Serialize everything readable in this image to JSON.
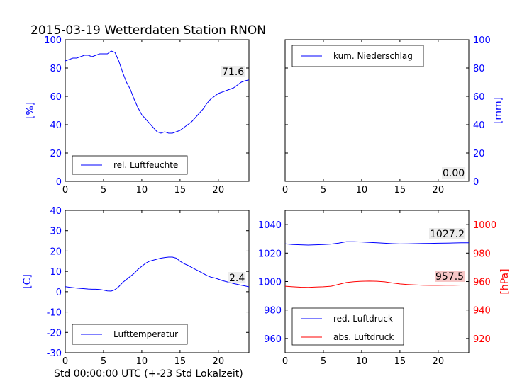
{
  "title": "2015-03-19 Wetterdaten Station RNON",
  "xlabel": "Std 00:00:00 UTC (+-23 Std Lokalzeit)",
  "chart_data": [
    {
      "type": "line",
      "id": "humidity",
      "xlim": [
        0,
        24
      ],
      "ylim": [
        0,
        100
      ],
      "xticks": [
        0,
        5,
        10,
        15,
        20
      ],
      "yticks": [
        0,
        20,
        40,
        60,
        80,
        100
      ],
      "ylabel": "[%]",
      "legend": "bottom-left",
      "value_label": "71.6",
      "series": [
        {
          "name": "rel. Luftfeuchte",
          "color": "#0000ff",
          "x": [
            0,
            0.5,
            1,
            1.5,
            2,
            2.5,
            3,
            3.5,
            4,
            4.5,
            5,
            5.5,
            6,
            6.5,
            7,
            7.5,
            8,
            8.5,
            9,
            9.5,
            10,
            10.5,
            11,
            11.5,
            12,
            12.5,
            13,
            13.5,
            14,
            14.5,
            15,
            15.5,
            16,
            16.5,
            17,
            17.5,
            18,
            18.5,
            19,
            19.5,
            20,
            20.5,
            21,
            21.5,
            22,
            22.5,
            23,
            23.5,
            24
          ],
          "y": [
            85,
            86,
            87,
            87,
            88,
            89,
            89,
            88,
            89,
            90,
            90,
            90,
            92,
            91,
            85,
            77,
            70,
            65,
            58,
            52,
            47,
            44,
            41,
            38,
            35,
            34,
            35,
            34,
            34,
            35,
            36,
            38,
            40,
            42,
            45,
            48,
            51,
            55,
            58,
            60,
            62,
            63,
            64,
            65,
            66,
            68,
            70,
            71,
            71.6
          ]
        }
      ]
    },
    {
      "type": "line",
      "id": "precipitation",
      "xlim": [
        0,
        24
      ],
      "ylim": [
        0,
        100
      ],
      "xticks": [
        0,
        5,
        10,
        15,
        20
      ],
      "yticks": [
        0,
        20,
        40,
        60,
        80,
        100
      ],
      "ylabel": "[mm]",
      "legend": "top-left",
      "value_label": "0.00",
      "series": [
        {
          "name": "kum. Niederschlag",
          "color": "#0000ff",
          "x": [
            0,
            24
          ],
          "y": [
            0,
            0
          ]
        }
      ]
    },
    {
      "type": "line",
      "id": "temperature",
      "xlim": [
        0,
        24
      ],
      "ylim": [
        -30,
        40
      ],
      "xticks": [
        0,
        5,
        10,
        15,
        20
      ],
      "yticks": [
        -30,
        -20,
        -10,
        0,
        10,
        20,
        30,
        40
      ],
      "ylabel": "[C]",
      "legend": "bottom-left",
      "value_label": "2.4",
      "series": [
        {
          "name": "Lufttemperatur",
          "color": "#0000ff",
          "x": [
            0,
            0.5,
            1,
            1.5,
            2,
            2.5,
            3,
            3.5,
            4,
            4.5,
            5,
            5.5,
            6,
            6.5,
            7,
            7.5,
            8,
            8.5,
            9,
            9.5,
            10,
            10.5,
            11,
            11.5,
            12,
            12.5,
            13,
            13.5,
            14,
            14.5,
            15,
            15.5,
            16,
            16.5,
            17,
            17.5,
            18,
            18.5,
            19,
            19.5,
            20,
            20.5,
            21,
            21.5,
            22,
            22.5,
            23,
            23.5,
            24
          ],
          "y": [
            2.5,
            2.2,
            2.0,
            1.8,
            1.6,
            1.5,
            1.3,
            1.2,
            1.2,
            1.1,
            0.8,
            0.4,
            0.3,
            1.0,
            2.5,
            4.5,
            6.0,
            7.5,
            9.0,
            11.0,
            12.5,
            14.0,
            15.0,
            15.5,
            16.0,
            16.5,
            16.8,
            17.0,
            17.0,
            16.5,
            15.0,
            13.8,
            13.0,
            12.0,
            11.0,
            10.0,
            9.0,
            8.0,
            7.2,
            6.8,
            6.2,
            5.5,
            5.0,
            4.5,
            4.0,
            3.6,
            3.2,
            2.8,
            2.4
          ]
        }
      ]
    },
    {
      "type": "line",
      "id": "pressure",
      "xlim": [
        0,
        24
      ],
      "ylim": [
        950,
        1050
      ],
      "y2lim": [
        910,
        1010
      ],
      "xticks": [
        0,
        5,
        10,
        15,
        20
      ],
      "yticks": [
        960,
        980,
        1000,
        1020,
        1040
      ],
      "y2ticks": [
        920,
        940,
        960,
        980,
        1000
      ],
      "y2label": "[hPa]",
      "legend": "bottom-left",
      "series": [
        {
          "name": "red. Luftdruck",
          "color": "#0000ff",
          "axis": "left",
          "value_label": "1027.2",
          "x": [
            0,
            1,
            2,
            3,
            4,
            5,
            6,
            7,
            8,
            9,
            10,
            11,
            12,
            13,
            14,
            15,
            16,
            17,
            18,
            19,
            20,
            21,
            22,
            23,
            24
          ],
          "y": [
            1026.5,
            1026.0,
            1025.8,
            1025.6,
            1025.8,
            1026.0,
            1026.3,
            1027.0,
            1028.0,
            1028.0,
            1027.8,
            1027.5,
            1027.2,
            1026.9,
            1026.6,
            1026.4,
            1026.5,
            1026.6,
            1026.7,
            1026.8,
            1026.9,
            1027.0,
            1027.1,
            1027.2,
            1027.2
          ]
        },
        {
          "name": "abs. Luftdruck",
          "color": "#ff0000",
          "axis": "right",
          "value_label": "957.5",
          "x": [
            0,
            1,
            2,
            3,
            4,
            5,
            6,
            7,
            8,
            9,
            10,
            11,
            12,
            13,
            14,
            15,
            16,
            17,
            18,
            19,
            20,
            21,
            22,
            23,
            24
          ],
          "y": [
            956.7,
            956.3,
            956.0,
            955.9,
            956.1,
            956.3,
            956.7,
            958.0,
            959.3,
            959.9,
            960.2,
            960.3,
            960.2,
            959.8,
            959.0,
            958.3,
            957.9,
            957.6,
            957.4,
            957.3,
            957.3,
            957.4,
            957.4,
            957.5,
            957.5
          ]
        }
      ]
    }
  ]
}
